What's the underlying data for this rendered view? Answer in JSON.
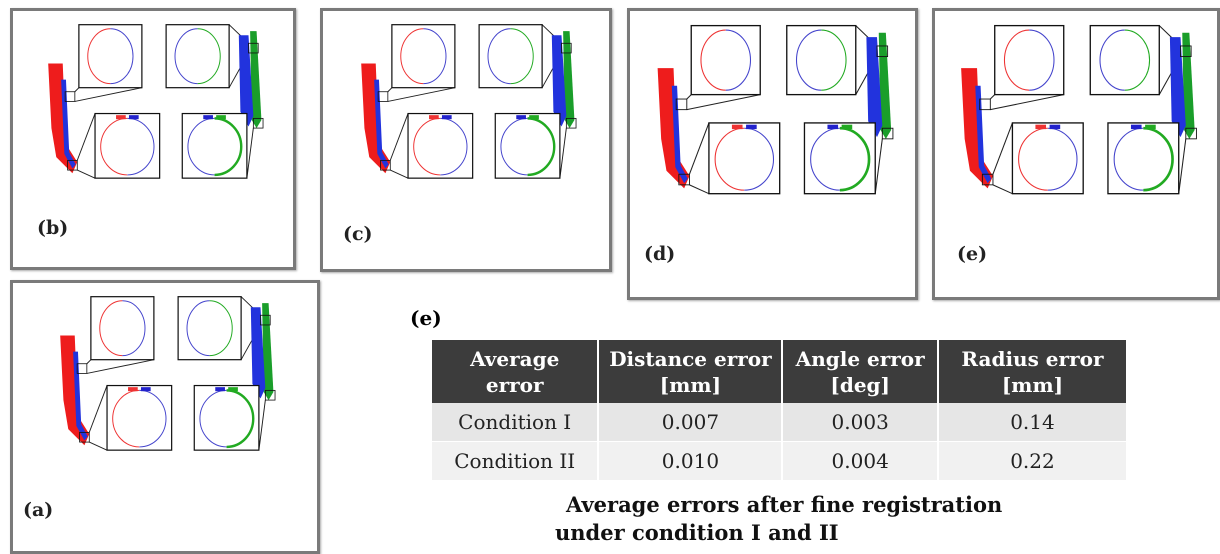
{
  "panels": [
    {
      "label": "(b)"
    },
    {
      "label": "(c)"
    },
    {
      "label": "(d)"
    },
    {
      "label": "(e)"
    },
    {
      "label": "(a)"
    }
  ],
  "table": {
    "label": "(e)",
    "header": [
      "Average\nerror",
      "Distance error\n[mm]",
      "Angle error\n[deg]",
      "Radius error\n[mm]"
    ],
    "rows": [
      [
        "Condition I",
        "0.007",
        "0.003",
        "0.14"
      ],
      [
        "Condition II",
        "0.010",
        "0.004",
        "0.22"
      ]
    ]
  },
  "caption": [
    "Average errors after fine registration",
    "under condition I and II"
  ]
}
